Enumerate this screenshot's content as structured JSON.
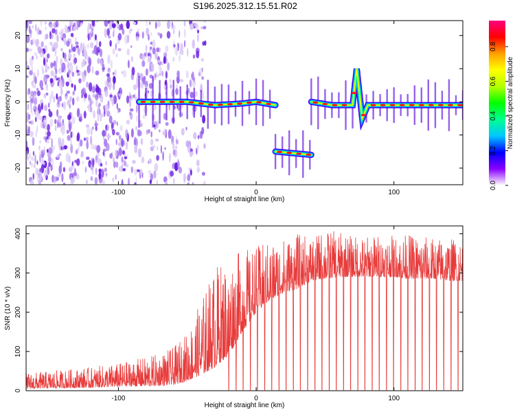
{
  "title": "S196.2025.312.15.51.R02",
  "colors": {
    "axis": "#000000",
    "snr_line": "#e83a3a",
    "scatter_light": "#d9c6f5",
    "scatter_mid": "#a678ee",
    "scatter_dark": "#6a1fe0"
  },
  "chart_data": [
    {
      "type": "heatmap",
      "title": "S196.2025.312.15.51.R02",
      "xlabel": "Height of straight line (km)",
      "ylabel": "Frequency (Hz)",
      "xlim": [
        -167,
        150
      ],
      "ylim": [
        -25,
        24.5
      ],
      "x_ticks": [
        -100,
        0,
        100
      ],
      "x_tick_labels": [
        "-100",
        "0",
        "100"
      ],
      "y_ticks": [
        -20,
        -10,
        0,
        10,
        20
      ],
      "y_tick_labels": [
        "-20",
        "-10",
        "0",
        "10",
        "20"
      ],
      "colorbar": {
        "label": "Normalized spectral amplitude",
        "range": [
          0,
          0.95
        ],
        "ticks": [
          0.0,
          0.2,
          0.4,
          0.6,
          0.8
        ],
        "tick_labels": [
          "0.0",
          "0.2",
          "0.4",
          "0.6",
          "0.8"
        ],
        "colormap": [
          "#ffffff",
          "#8a00ff",
          "#0000ff",
          "#00c8ff",
          "#00ff90",
          "#00ff00",
          "#b4ff00",
          "#ffff00",
          "#ffa000",
          "#ff0000",
          "#ff0080"
        ]
      },
      "ridge_segments": [
        {
          "x": [
            -85,
            -50,
            -30,
            -10,
            0,
            14
          ],
          "freq": [
            0,
            0,
            -1,
            -0.5,
            0,
            -1
          ]
        },
        {
          "x": [
            14,
            40
          ],
          "freq": [
            -15,
            -16
          ]
        },
        {
          "x": [
            40,
            55,
            70,
            73,
            77,
            81,
            100,
            150
          ],
          "freq": [
            0,
            -1,
            -1,
            10,
            -5,
            -1,
            -1,
            -1
          ]
        }
      ]
    },
    {
      "type": "line",
      "xlabel": "Height of straight line (km)",
      "ylabel": "SNR (10 * v/v)",
      "xlim": [
        -167,
        150
      ],
      "ylim": [
        0,
        420
      ],
      "x_ticks": [
        -100,
        0,
        100
      ],
      "x_tick_labels": [
        "-100",
        "0",
        "100"
      ],
      "y_ticks": [
        0,
        100,
        200,
        300,
        400
      ],
      "y_tick_labels": [
        "0",
        "100",
        "200",
        "300",
        "400"
      ],
      "envelope": {
        "x": [
          -167,
          -120,
          -100,
          -75,
          -60,
          -50,
          -40,
          -30,
          -20,
          -10,
          0,
          10,
          20,
          30,
          40,
          50,
          60,
          70,
          80,
          90,
          100,
          110,
          120,
          130,
          140,
          150
        ],
        "baseline": [
          5,
          8,
          10,
          12,
          15,
          25,
          40,
          60,
          90,
          150,
          200,
          230,
          250,
          260,
          280,
          285,
          290,
          290,
          290,
          290,
          290,
          285,
          285,
          285,
          280,
          280
        ],
        "peak": [
          45,
          60,
          70,
          90,
          110,
          150,
          230,
          320,
          340,
          360,
          370,
          380,
          390,
          400,
          395,
          410,
          405,
          395,
          395,
          400,
          395,
          400,
          395,
          390,
          390,
          385
        ]
      },
      "dropouts": {
        "start_x": -20,
        "end_x": 150,
        "spacing": 5.2,
        "min_value": 2
      }
    }
  ]
}
